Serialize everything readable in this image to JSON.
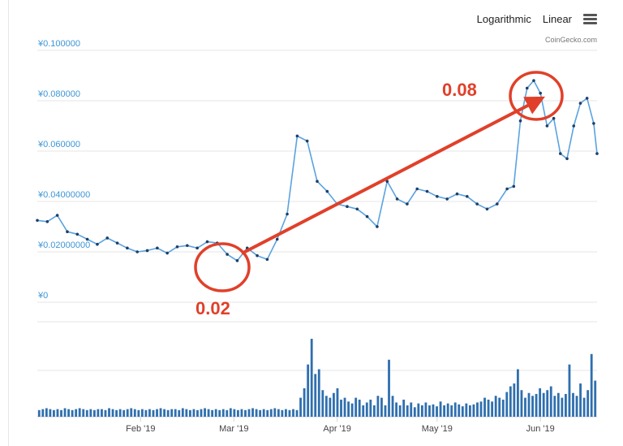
{
  "toolbar": {
    "logarithmic_label": "Logarithmic",
    "linear_label": "Linear",
    "menu_icon": "hamburger-menu-icon"
  },
  "credit": "CoinGecko.com",
  "chart_data": {
    "type": "line",
    "title": "",
    "xlabel": "",
    "ylabel": "",
    "ylim": [
      0,
      0.1
    ],
    "y_ticks": [
      {
        "value": 0,
        "label": "¥0"
      },
      {
        "value": 0.02,
        "label": "¥0.02000000"
      },
      {
        "value": 0.04,
        "label": "¥0.04000000"
      },
      {
        "value": 0.06,
        "label": "¥0.060000"
      },
      {
        "value": 0.08,
        "label": "¥0.080000"
      },
      {
        "value": 0.1,
        "label": "¥0.100000"
      }
    ],
    "x_range": [
      "2019-01-01",
      "2019-06-18"
    ],
    "x_ticks": [
      {
        "date": "2019-02-01",
        "label": "Feb '19"
      },
      {
        "date": "2019-03-01",
        "label": "Mar '19"
      },
      {
        "date": "2019-04-01",
        "label": "Apr '19"
      },
      {
        "date": "2019-05-01",
        "label": "May '19"
      },
      {
        "date": "2019-06-01",
        "label": "Jun '19"
      }
    ],
    "grid": true,
    "series": [
      {
        "x": [
          "2019-01-01",
          "2019-01-04",
          "2019-01-07",
          "2019-01-10",
          "2019-01-13",
          "2019-01-16",
          "2019-01-19",
          "2019-01-22",
          "2019-01-25",
          "2019-01-28",
          "2019-01-31",
          "2019-02-03",
          "2019-02-06",
          "2019-02-09",
          "2019-02-12",
          "2019-02-15",
          "2019-02-18",
          "2019-02-21",
          "2019-02-24",
          "2019-02-27",
          "2019-03-02",
          "2019-03-05",
          "2019-03-08",
          "2019-03-11",
          "2019-03-14",
          "2019-03-17",
          "2019-03-20",
          "2019-03-23",
          "2019-03-26",
          "2019-03-29",
          "2019-04-01",
          "2019-04-04",
          "2019-04-07",
          "2019-04-10",
          "2019-04-13",
          "2019-04-16",
          "2019-04-19",
          "2019-04-22",
          "2019-04-25",
          "2019-04-28",
          "2019-05-01",
          "2019-05-04",
          "2019-05-07",
          "2019-05-10",
          "2019-05-13",
          "2019-05-16",
          "2019-05-19",
          "2019-05-22",
          "2019-05-24",
          "2019-05-26",
          "2019-05-28",
          "2019-05-30",
          "2019-06-01",
          "2019-06-03",
          "2019-06-05",
          "2019-06-07",
          "2019-06-09",
          "2019-06-11",
          "2019-06-13",
          "2019-06-15",
          "2019-06-17",
          "2019-06-18"
        ],
        "values": [
          0.0325,
          0.032,
          0.0345,
          0.028,
          0.027,
          0.025,
          0.023,
          0.0255,
          0.0235,
          0.0215,
          0.02,
          0.0205,
          0.0215,
          0.0195,
          0.022,
          0.0225,
          0.0215,
          0.024,
          0.0235,
          0.019,
          0.0165,
          0.0215,
          0.0185,
          0.017,
          0.025,
          0.035,
          0.066,
          0.064,
          0.048,
          0.044,
          0.039,
          0.038,
          0.037,
          0.034,
          0.03,
          0.048,
          0.041,
          0.039,
          0.045,
          0.044,
          0.042,
          0.041,
          0.043,
          0.042,
          0.039,
          0.037,
          0.039,
          0.045,
          0.046,
          0.072,
          0.085,
          0.088,
          0.083,
          0.07,
          0.073,
          0.059,
          0.057,
          0.07,
          0.079,
          0.081,
          0.071,
          0.059
        ]
      }
    ],
    "volume_series": {
      "x_range": [
        "2019-01-01",
        "2019-06-18"
      ],
      "values": [
        0.07,
        0.08,
        0.09,
        0.08,
        0.07,
        0.08,
        0.07,
        0.09,
        0.08,
        0.07,
        0.08,
        0.09,
        0.08,
        0.07,
        0.08,
        0.07,
        0.08,
        0.08,
        0.07,
        0.09,
        0.08,
        0.07,
        0.08,
        0.07,
        0.08,
        0.09,
        0.08,
        0.07,
        0.08,
        0.07,
        0.08,
        0.07,
        0.08,
        0.09,
        0.08,
        0.07,
        0.08,
        0.08,
        0.07,
        0.09,
        0.08,
        0.07,
        0.08,
        0.07,
        0.08,
        0.09,
        0.08,
        0.07,
        0.08,
        0.07,
        0.08,
        0.07,
        0.09,
        0.08,
        0.07,
        0.08,
        0.07,
        0.08,
        0.09,
        0.08,
        0.07,
        0.08,
        0.07,
        0.08,
        0.09,
        0.08,
        0.07,
        0.08,
        0.07,
        0.08,
        0.07,
        0.2,
        0.3,
        0.55,
        0.82,
        0.45,
        0.5,
        0.28,
        0.22,
        0.2,
        0.25,
        0.3,
        0.18,
        0.2,
        0.16,
        0.14,
        0.2,
        0.18,
        0.12,
        0.15,
        0.18,
        0.12,
        0.22,
        0.2,
        0.12,
        0.6,
        0.22,
        0.15,
        0.12,
        0.18,
        0.12,
        0.15,
        0.1,
        0.14,
        0.12,
        0.15,
        0.12,
        0.13,
        0.11,
        0.16,
        0.12,
        0.14,
        0.12,
        0.15,
        0.13,
        0.11,
        0.14,
        0.12,
        0.13,
        0.15,
        0.16,
        0.2,
        0.18,
        0.16,
        0.22,
        0.2,
        0.18,
        0.26,
        0.32,
        0.35,
        0.5,
        0.28,
        0.2,
        0.25,
        0.22,
        0.24,
        0.3,
        0.25,
        0.28,
        0.32,
        0.22,
        0.25,
        0.2,
        0.24,
        0.55,
        0.25,
        0.22,
        0.35,
        0.2,
        0.28,
        0.66,
        0.38
      ]
    }
  }
}
